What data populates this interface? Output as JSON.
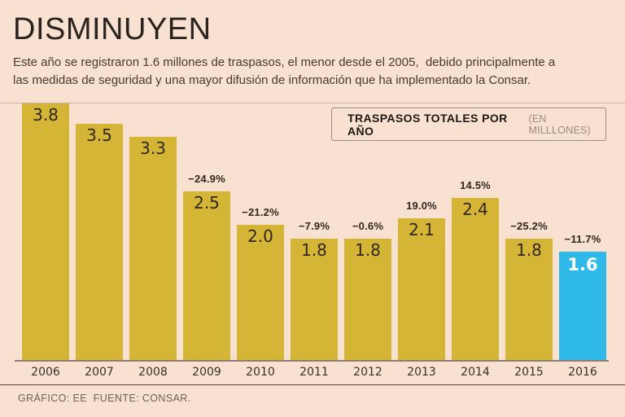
{
  "title": "DISMINUYEN",
  "subtitle_lines": [
    "Este año se registraron 1.6 millones de traspasos, el menor desde el 2005,  debido principalmente a",
    "las medidas de seguridad y una mayor difusión de información que ha implementado la Consar."
  ],
  "legend": {
    "label": "TRASPASOS TOTALES POR AÑO",
    "sublabel": "(EN MILLLONES)"
  },
  "footer_credit": "GRÁFICO: EE  FUENTE: CONSAR.",
  "colors": {
    "background": "#f8e1d1",
    "bar_gold": "#d5b535",
    "bar_highlight_cyan": "#2fb9e9",
    "text_dark": "#30271f",
    "baseline": "#8d7e71",
    "separator": "#50463c"
  },
  "chart_data": {
    "type": "bar",
    "title": "TRASPASOS TOTALES POR AÑO",
    "units": "EN MILLLONES",
    "categories": [
      "2006",
      "2007",
      "2008",
      "2009",
      "2010",
      "2011",
      "2012",
      "2013",
      "2014",
      "2015",
      "2016"
    ],
    "values": [
      3.8,
      3.5,
      3.3,
      2.5,
      2.0,
      1.8,
      1.8,
      2.1,
      2.4,
      1.8,
      1.6
    ],
    "value_labels": [
      "3.8",
      "3.5",
      "3.3",
      "2.5",
      "2.0",
      "1.8",
      "1.8",
      "2.1",
      "2.4",
      "1.8",
      "1.6"
    ],
    "pct_labels": [
      "",
      "",
      "",
      "−24.9%",
      "−21.2%",
      "−7.9%",
      "−0.6%",
      "19.0%",
      "14.5%",
      "−25.2%",
      "−11.7%"
    ],
    "ylim": [
      0,
      3.8
    ],
    "highlight_index": 10,
    "bar_color": "#d5b535",
    "highlight_color": "#2fb9e9",
    "grid": false,
    "legend_position": "top-right"
  }
}
